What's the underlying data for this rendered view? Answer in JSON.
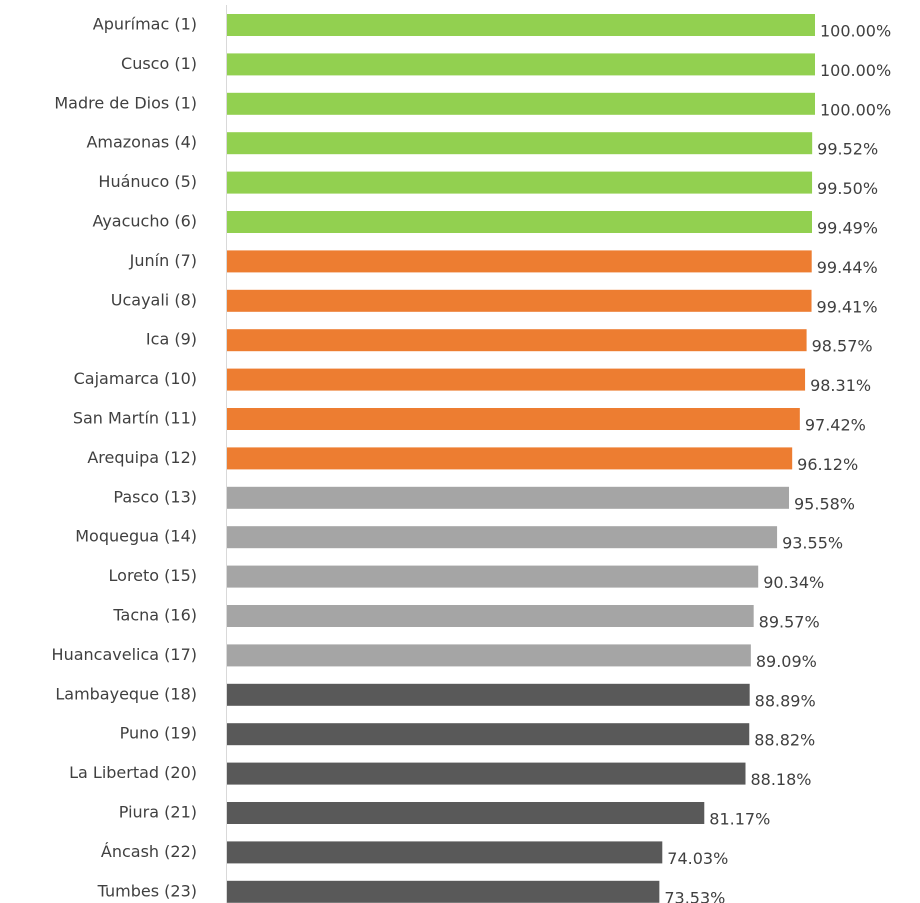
{
  "chart_data": {
    "type": "barh",
    "categories": [
      "Apurímac (1)",
      "Cusco (1)",
      "Madre de Dios (1)",
      "Amazonas (4)",
      "Huánuco (5)",
      "Ayacucho (6)",
      "Junín (7)",
      "Ucayali (8)",
      "Ica (9)",
      "Cajamarca (10)",
      "San Martín (11)",
      "Arequipa (12)",
      "Pasco (13)",
      "Moquegua (14)",
      "Loreto (15)",
      "Tacna (16)",
      "Huancavelica (17)",
      "Lambayeque (18)",
      "Puno (19)",
      "La Libertad (20)",
      "Piura (21)",
      "Áncash (22)",
      "Tumbes (23)"
    ],
    "values": [
      100,
      100,
      100,
      99.52,
      99.5,
      99.49,
      99.44,
      99.41,
      98.57,
      98.31,
      97.42,
      96.12,
      95.58,
      93.55,
      90.34,
      89.57,
      89.09,
      88.89,
      88.82,
      88.18,
      81.17,
      74.03,
      73.53
    ],
    "value_labels": [
      "100.00%",
      "100.00%",
      "100.00%",
      "99.52%",
      "99.50%",
      "99.49%",
      "99.44%",
      "99.41%",
      "98.57%",
      "98.31%",
      "97.42%",
      "96.12%",
      "95.58%",
      "93.55%",
      "90.34%",
      "89.57%",
      "89.09%",
      "88.89%",
      "88.82%",
      "88.18%",
      "81.17%",
      "74.03%",
      "73.53%"
    ],
    "colors": [
      "#92d050",
      "#92d050",
      "#92d050",
      "#92d050",
      "#92d050",
      "#92d050",
      "#ed7d31",
      "#ed7d31",
      "#ed7d31",
      "#ed7d31",
      "#ed7d31",
      "#ed7d31",
      "#a5a5a5",
      "#a5a5a5",
      "#a5a5a5",
      "#a5a5a5",
      "#a5a5a5",
      "#595959",
      "#595959",
      "#595959",
      "#595959",
      "#595959",
      "#595959"
    ],
    "xlim": [
      0,
      100
    ]
  }
}
